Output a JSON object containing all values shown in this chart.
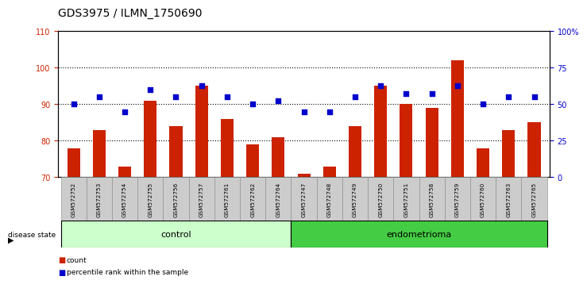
{
  "title": "GDS3975 / ILMN_1750690",
  "samples": [
    "GSM572752",
    "GSM572753",
    "GSM572754",
    "GSM572755",
    "GSM572756",
    "GSM572757",
    "GSM572761",
    "GSM572762",
    "GSM572764",
    "GSM572747",
    "GSM572748",
    "GSM572749",
    "GSM572750",
    "GSM572751",
    "GSM572758",
    "GSM572759",
    "GSM572760",
    "GSM572763",
    "GSM572765"
  ],
  "counts": [
    78,
    83,
    73,
    91,
    84,
    95,
    86,
    79,
    81,
    71,
    73,
    84,
    95,
    90,
    89,
    102,
    78,
    83,
    85
  ],
  "percentile_left_vals": [
    90,
    92,
    88,
    94,
    92,
    95,
    92,
    90,
    91,
    88,
    88,
    92,
    95,
    93,
    93,
    95,
    90,
    92,
    92
  ],
  "n_control": 9,
  "n_endometrioma": 10,
  "ylim_left": [
    70,
    110
  ],
  "ylim_right": [
    0,
    100
  ],
  "yticks_left": [
    70,
    80,
    90,
    100,
    110
  ],
  "yticks_right": [
    0,
    25,
    50,
    75,
    100
  ],
  "ytick_labels_right": [
    "0",
    "25",
    "50",
    "75",
    "100%"
  ],
  "bar_color": "#cc2200",
  "dot_color": "#0000cc",
  "control_bg": "#ccffcc",
  "endometrioma_bg": "#44cc44",
  "sample_bg": "#cccccc",
  "title_fontsize": 10,
  "tick_fontsize": 7,
  "label_fontsize": 7
}
